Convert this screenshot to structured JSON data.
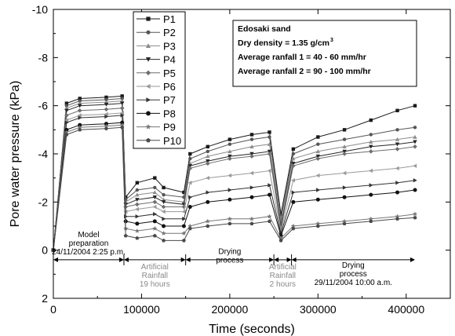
{
  "chart_data": {
    "type": "line",
    "xlabel": "Time (seconds)",
    "ylabel": "Pore water pressure (kPa)",
    "xlim": [
      0,
      450000
    ],
    "ylim": [
      2,
      -10
    ],
    "y_inverted": true,
    "x_ticks": [
      0,
      100000,
      200000,
      300000,
      400000
    ],
    "x_tick_labels": [
      "0",
      "100000",
      "200000",
      "300000",
      "400000"
    ],
    "y_ticks": [
      -10,
      -8,
      -6,
      -4,
      -2,
      0,
      2
    ],
    "y_tick_labels": [
      "-10",
      "-8",
      "-6",
      "-4",
      "-2",
      "0",
      "2"
    ],
    "grid": false,
    "legend_position": "top-left",
    "info_box": [
      "Edosaki sand",
      "Dry density = 1.35 g/cm",
      "Average ranfall 1 = 40 - 60 mm/hr",
      "Average ranfall 2 = 90 - 100 mm/hr"
    ],
    "info_superscript": "3",
    "phases": [
      {
        "label_lines": [
          "Model",
          "preparation",
          "24/11/2004 2:25 p.m."
        ],
        "x_start": 0,
        "x_end": 80000,
        "color": "#000000"
      },
      {
        "label_lines": [
          "Artificial",
          "Rainfall",
          "19 hours"
        ],
        "x_start": 80000,
        "x_end": 150000,
        "color": "#8a8a8a"
      },
      {
        "label_lines": [
          "Drying",
          "process"
        ],
        "x_start": 150000,
        "x_end": 250000,
        "color": "#000000"
      },
      {
        "label_lines": [
          "Artificial",
          "Rainfall",
          "2 hours"
        ],
        "x_start": 250000,
        "x_end": 270000,
        "color": "#8a8a8a"
      },
      {
        "label_lines": [
          "Drying",
          "process",
          "29/11/2004 10:00 a.m."
        ],
        "x_start": 270000,
        "x_end": 410000,
        "color": "#000000"
      }
    ],
    "series": [
      {
        "name": "P1",
        "marker": "square",
        "color": "#1a1a1a",
        "rain1": [
          -2.8,
          -3.0,
          -2.6
        ],
        "values": [
          0,
          -6.1,
          -6.3,
          -6.35,
          -6.4,
          -2.2,
          -2.6,
          -2.8,
          -3.0,
          -2.4,
          -4.0,
          -4.3,
          -4.6,
          -4.8,
          -4.9,
          -1.5,
          -4.2,
          -4.7,
          -5.0,
          -5.4,
          -5.8,
          -6.0
        ]
      },
      {
        "name": "P2",
        "marker": "circle",
        "color": "#555555",
        "rain1": [
          -2.5,
          -2.6,
          -2.3
        ],
        "values": [
          0,
          -6.0,
          -6.2,
          -6.25,
          -6.3,
          -2.1,
          -2.3,
          -2.5,
          -2.6,
          -2.2,
          -3.8,
          -4.1,
          -4.4,
          -4.6,
          -4.7,
          -1.3,
          -4.0,
          -4.4,
          -4.6,
          -4.8,
          -5.0,
          -5.1
        ]
      },
      {
        "name": "P3",
        "marker": "triangle-up",
        "color": "#8c8c8c",
        "rain1": [
          -2.3,
          -2.4,
          -2.1
        ],
        "values": [
          0,
          -5.9,
          -6.1,
          -6.15,
          -6.2,
          -2.0,
          -2.2,
          -2.3,
          -2.4,
          -2.0,
          -3.6,
          -3.9,
          -4.1,
          -4.3,
          -4.4,
          -1.2,
          -3.8,
          -4.1,
          -4.3,
          -4.5,
          -4.6,
          -4.7
        ]
      },
      {
        "name": "P4",
        "marker": "triangle-down",
        "color": "#262626",
        "rain1": [
          -2.1,
          -2.2,
          -2.0
        ],
        "values": [
          0,
          -5.8,
          -6.0,
          -6.05,
          -6.1,
          -1.9,
          -2.1,
          -2.1,
          -2.2,
          -1.9,
          -3.5,
          -3.7,
          -3.9,
          -4.0,
          -4.1,
          -1.0,
          -3.6,
          -3.9,
          -4.1,
          -4.3,
          -4.4,
          -4.5
        ]
      },
      {
        "name": "P5",
        "marker": "diamond",
        "color": "#6e6e6e",
        "rain1": [
          -1.9,
          -2.0,
          -1.8
        ],
        "values": [
          0,
          -5.6,
          -5.8,
          -5.85,
          -5.9,
          -1.8,
          -1.9,
          -1.9,
          -2.0,
          -1.8,
          -3.4,
          -3.6,
          -3.8,
          -3.9,
          -4.0,
          -0.9,
          -3.5,
          -3.8,
          -4.0,
          -4.1,
          -4.2,
          -4.3
        ]
      },
      {
        "name": "P6",
        "marker": "triangle-left",
        "color": "#9a9a9a",
        "rain1": [
          -1.7,
          -1.8,
          -1.6
        ],
        "values": [
          0,
          -5.4,
          -5.6,
          -5.65,
          -5.7,
          -1.6,
          -1.7,
          -1.7,
          -1.8,
          -1.6,
          -2.8,
          -3.0,
          -3.1,
          -3.2,
          -3.3,
          -0.8,
          -2.9,
          -3.1,
          -3.2,
          -3.3,
          -3.4,
          -3.5
        ]
      },
      {
        "name": "P7",
        "marker": "triangle-right",
        "color": "#333333",
        "rain1": [
          -1.4,
          -1.5,
          -1.3
        ],
        "values": [
          0,
          -5.3,
          -5.5,
          -5.55,
          -5.6,
          -1.4,
          -1.5,
          -1.4,
          -1.5,
          -1.3,
          -2.2,
          -2.4,
          -2.5,
          -2.6,
          -2.7,
          -0.7,
          -2.4,
          -2.5,
          -2.6,
          -2.7,
          -2.8,
          -2.9
        ]
      },
      {
        "name": "P8",
        "marker": "hexagon",
        "color": "#111111",
        "rain1": [
          -1.1,
          -1.2,
          -1.0
        ],
        "values": [
          0,
          -5.0,
          -5.2,
          -5.25,
          -5.3,
          -1.2,
          -1.2,
          -1.1,
          -1.2,
          -1.0,
          -1.8,
          -2.0,
          -2.1,
          -2.2,
          -2.3,
          -0.6,
          -2.0,
          -2.1,
          -2.2,
          -2.3,
          -2.4,
          -2.5
        ]
      },
      {
        "name": "P9",
        "marker": "star",
        "color": "#777777",
        "rain1": [
          -0.8,
          -0.9,
          -0.7
        ],
        "values": [
          0,
          -4.9,
          -5.1,
          -5.15,
          -5.2,
          -0.9,
          -0.9,
          -0.8,
          -0.9,
          -0.7,
          -1.0,
          -1.2,
          -1.3,
          -1.3,
          -1.4,
          -0.5,
          -1.0,
          -1.1,
          -1.2,
          -1.3,
          -1.4,
          -1.5
        ]
      },
      {
        "name": "P10",
        "marker": "pentagon",
        "color": "#4a4a4a",
        "rain1": [
          -0.5,
          -0.6,
          -0.4
        ],
        "values": [
          0,
          -4.8,
          -5.0,
          -5.05,
          -5.1,
          -0.6,
          -0.6,
          -0.5,
          -0.5,
          -0.4,
          -0.9,
          -1.0,
          -1.1,
          -1.1,
          -1.2,
          -0.4,
          -0.9,
          -1.0,
          -1.1,
          -1.2,
          -1.3,
          -1.35
        ]
      }
    ],
    "x": [
      0,
      15000,
      30000,
      60000,
      78000,
      82000,
      95000,
      115000,
      125000,
      148000,
      155000,
      175000,
      200000,
      225000,
      245000,
      258000,
      272000,
      300000,
      330000,
      360000,
      390000,
      410000
    ]
  }
}
